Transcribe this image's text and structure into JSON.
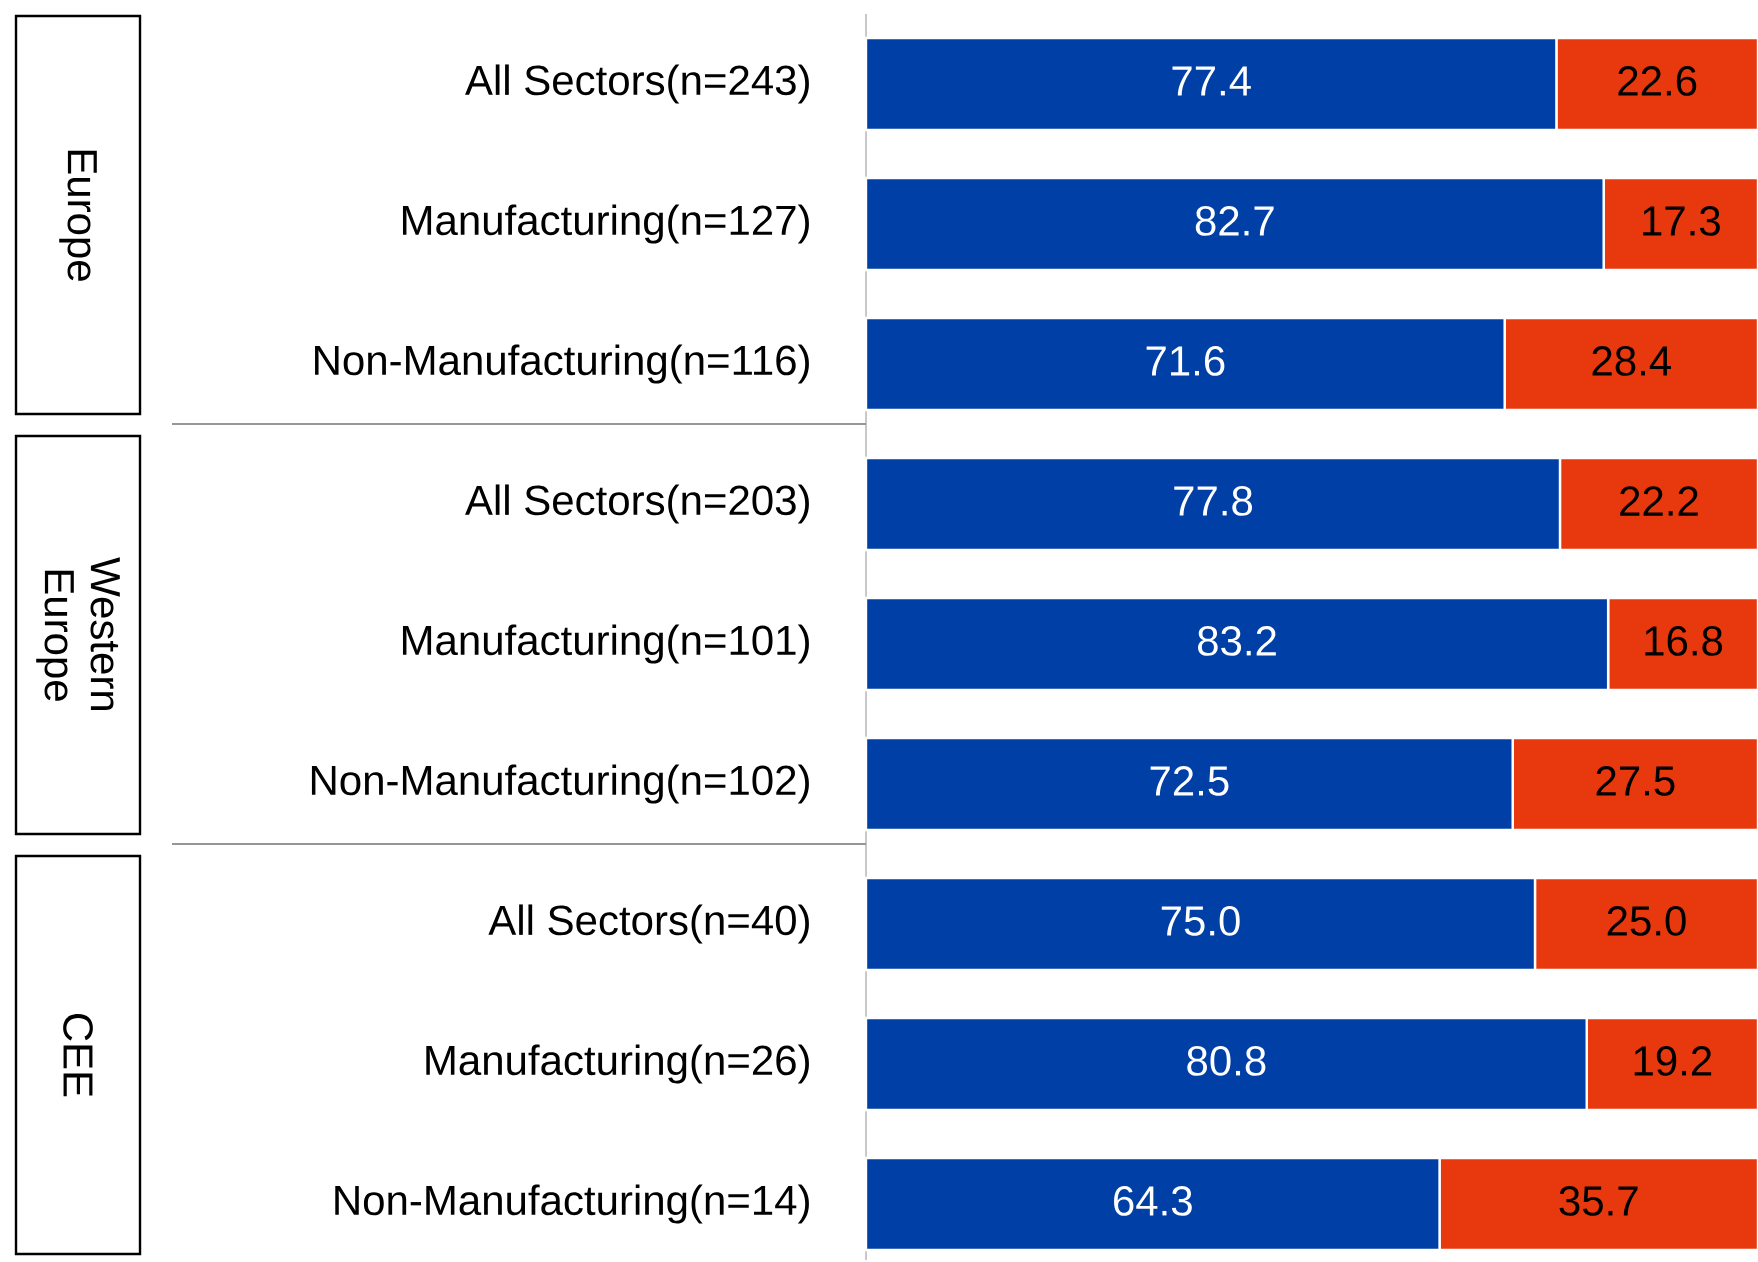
{
  "chart_data": {
    "type": "bar",
    "orientation": "horizontal",
    "stacked": true,
    "categories": [
      "All Sectors(n=243)",
      "Manufacturing(n=127)",
      "Non-Manufacturing(n=116)",
      "All Sectors(n=203)",
      "Manufacturing(n=101)",
      "Non-Manufacturing(n=102)",
      "All Sectors(n=40)",
      "Manufacturing(n=26)",
      "Non-Manufacturing(n=14)"
    ],
    "series": [
      {
        "color": "#003fa5",
        "values": [
          77.4,
          82.7,
          71.6,
          77.8,
          83.2,
          72.5,
          75.0,
          80.8,
          64.3
        ],
        "value_labels": [
          "77.4",
          "82.7",
          "71.6",
          "77.8",
          "83.2",
          "72.5",
          "75.0",
          "80.8",
          "64.3"
        ]
      },
      {
        "color": "#e8380d",
        "values": [
          22.6,
          17.3,
          28.4,
          22.2,
          16.8,
          27.5,
          25.0,
          19.2,
          35.7
        ],
        "value_labels": [
          "22.6",
          "17.3",
          "28.4",
          "22.2",
          "16.8",
          "27.5",
          "25.0",
          "19.2",
          "35.7"
        ]
      }
    ],
    "annotations": [
      "Europe",
      "Western Europe",
      "CEE"
    ]
  }
}
